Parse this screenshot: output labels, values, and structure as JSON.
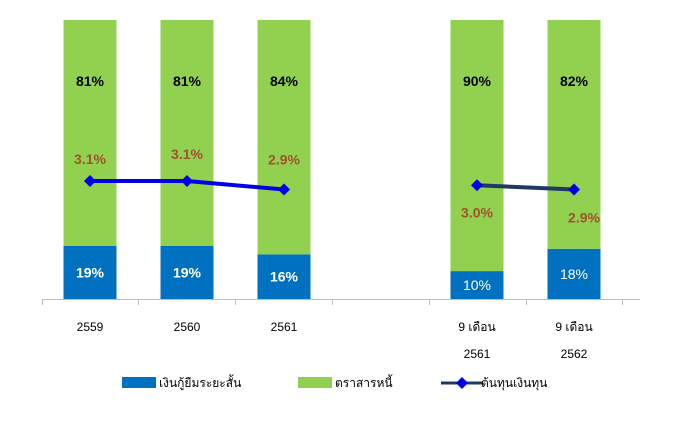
{
  "chart_data": {
    "type": "bar",
    "stacked": true,
    "categories": [
      {
        "lines": [
          "2559"
        ]
      },
      {
        "lines": [
          "2560"
        ]
      },
      {
        "lines": [
          "2561"
        ]
      },
      {
        "lines": [
          "",
          ""
        ]
      },
      {
        "lines": [
          "9 เดือน",
          "2561"
        ]
      },
      {
        "lines": [
          "9 เดือน",
          "2562"
        ]
      }
    ],
    "series": [
      {
        "name": "เงินกู้ยืมระยะสั้น",
        "kind": "bar",
        "color": "#0070C0",
        "values": [
          19,
          19,
          16,
          null,
          10,
          18
        ],
        "labels": [
          "19%",
          "19%",
          "16%",
          "",
          "10%",
          "18%"
        ],
        "label_bold": [
          true,
          true,
          true,
          false,
          false,
          false
        ]
      },
      {
        "name": "ตราสารหนี้",
        "kind": "bar",
        "color": "#92D050",
        "values": [
          81,
          81,
          84,
          null,
          90,
          82
        ],
        "labels": [
          "81%",
          "81%",
          "84%",
          "",
          "90%",
          "82%"
        ]
      },
      {
        "name": "ต้นทุนเงินทุน",
        "kind": "line",
        "color": "#0000E6",
        "segment_colors": [
          "#0000E6",
          "#1F3864"
        ],
        "values": [
          3.1,
          3.1,
          2.9,
          null,
          3.0,
          2.9
        ],
        "labels": [
          "3.1%",
          "3.1%",
          "2.9%",
          "",
          "3.0%",
          "2.9%"
        ],
        "label_color": "#A0522D"
      }
    ],
    "ylim": [
      0,
      100
    ],
    "legend": "bottom",
    "grid": false
  }
}
